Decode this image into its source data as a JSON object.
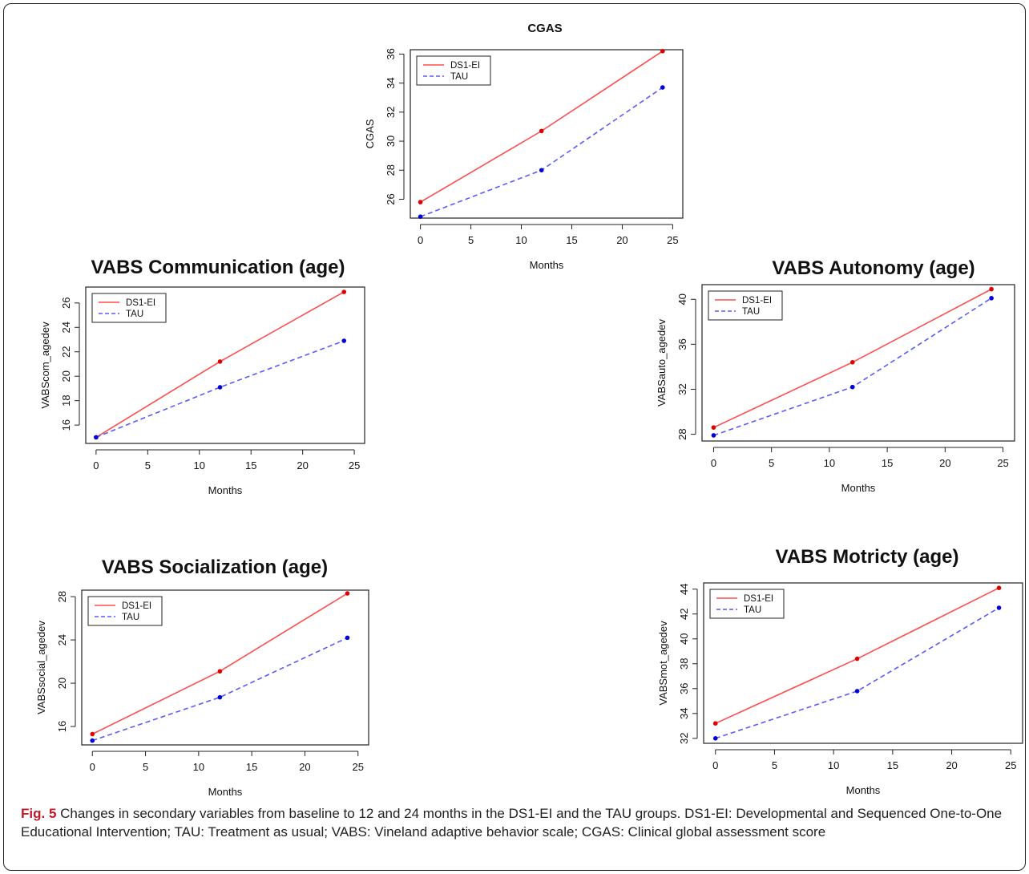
{
  "chart_data": [
    {
      "id": "cgas",
      "type": "line",
      "title": "CGAS",
      "xlabel": "Months",
      "ylabel": "CGAS",
      "x": [
        0,
        12,
        24
      ],
      "xticks": [
        0,
        5,
        10,
        15,
        20,
        25
      ],
      "yticks": [
        26,
        28,
        30,
        32,
        34,
        36
      ],
      "xlim": [
        -1,
        26
      ],
      "ylim": [
        24.7,
        36.3
      ],
      "legend": "top-left",
      "series": [
        {
          "name": "DS1-EI",
          "values": [
            25.8,
            30.7,
            36.2
          ],
          "color": "#ff4d4d",
          "marker": "#e00000",
          "dash": false
        },
        {
          "name": "TAU",
          "values": [
            24.8,
            28.0,
            33.7
          ],
          "color": "#5a5aff",
          "marker": "#0000dd",
          "dash": true
        }
      ]
    },
    {
      "id": "communication",
      "type": "line",
      "title": "VABS Communication (age)",
      "xlabel": "Months",
      "ylabel": "VABScom_agedev",
      "x": [
        0,
        12,
        24
      ],
      "xticks": [
        0,
        5,
        10,
        15,
        20,
        25
      ],
      "yticks": [
        16,
        18,
        20,
        22,
        24,
        26
      ],
      "xlim": [
        -1,
        26
      ],
      "ylim": [
        14.5,
        27.3
      ],
      "legend": "top-left",
      "series": [
        {
          "name": "DS1-EI",
          "values": [
            15.0,
            21.2,
            26.9
          ],
          "color": "#ff4d4d",
          "marker": "#e00000",
          "dash": false
        },
        {
          "name": "TAU",
          "values": [
            15.0,
            19.1,
            22.9
          ],
          "color": "#5a5aff",
          "marker": "#0000dd",
          "dash": true
        }
      ]
    },
    {
      "id": "autonomy",
      "type": "line",
      "title": "VABS Autonomy (age)",
      "xlabel": "Months",
      "ylabel": "VABSauto_agedev",
      "x": [
        0,
        12,
        24
      ],
      "xticks": [
        0,
        5,
        10,
        15,
        20,
        25
      ],
      "yticks": [
        28,
        32,
        36,
        40
      ],
      "xlim": [
        -1,
        26
      ],
      "ylim": [
        27.4,
        41.3
      ],
      "legend": "top-left",
      "series": [
        {
          "name": "DS1-EI",
          "values": [
            28.6,
            34.4,
            40.9
          ],
          "color": "#ff4d4d",
          "marker": "#e00000",
          "dash": false
        },
        {
          "name": "TAU",
          "values": [
            27.9,
            32.2,
            40.1
          ],
          "color": "#5a5aff",
          "marker": "#0000dd",
          "dash": true
        }
      ]
    },
    {
      "id": "socialization",
      "type": "line",
      "title": "VABS Socialization (age)",
      "xlabel": "Months",
      "ylabel": "VABSsocial_agedev",
      "x": [
        0,
        12,
        24
      ],
      "xticks": [
        0,
        5,
        10,
        15,
        20,
        25
      ],
      "yticks": [
        16,
        20,
        24,
        28
      ],
      "xlim": [
        -1,
        26
      ],
      "ylim": [
        14.3,
        28.6
      ],
      "legend": "top-left",
      "series": [
        {
          "name": "DS1-EI",
          "values": [
            15.3,
            21.1,
            28.3
          ],
          "color": "#ff4d4d",
          "marker": "#e00000",
          "dash": false
        },
        {
          "name": "TAU",
          "values": [
            14.7,
            18.7,
            24.2
          ],
          "color": "#5a5aff",
          "marker": "#0000dd",
          "dash": true
        }
      ]
    },
    {
      "id": "motricity",
      "type": "line",
      "title": "VABS Motricty (age)",
      "xlabel": "Months",
      "ylabel": "VABSmot_agedev",
      "x": [
        0,
        12,
        24
      ],
      "xticks": [
        0,
        5,
        10,
        15,
        20,
        25
      ],
      "yticks": [
        32,
        34,
        36,
        38,
        40,
        42,
        44
      ],
      "xlim": [
        -1,
        26
      ],
      "ylim": [
        31.6,
        44.5
      ],
      "legend": "top-left",
      "series": [
        {
          "name": "DS1-EI",
          "values": [
            33.2,
            38.4,
            44.1
          ],
          "color": "#ff4d4d",
          "marker": "#e00000",
          "dash": false
        },
        {
          "name": "TAU",
          "values": [
            32.0,
            35.8,
            42.5
          ],
          "color": "#5a5aff",
          "marker": "#0000dd",
          "dash": true
        }
      ]
    }
  ],
  "caption": {
    "label": "Fig. 5",
    "text": " Changes in secondary variables from baseline to 12 and 24 months in the DS1-EI and the TAU groups. DS1-EI: Developmental and Sequenced One-to-One Educational Intervention; TAU: Treatment as usual; VABS: Vineland adaptive behavior scale; CGAS: Clinical global assessment score"
  }
}
